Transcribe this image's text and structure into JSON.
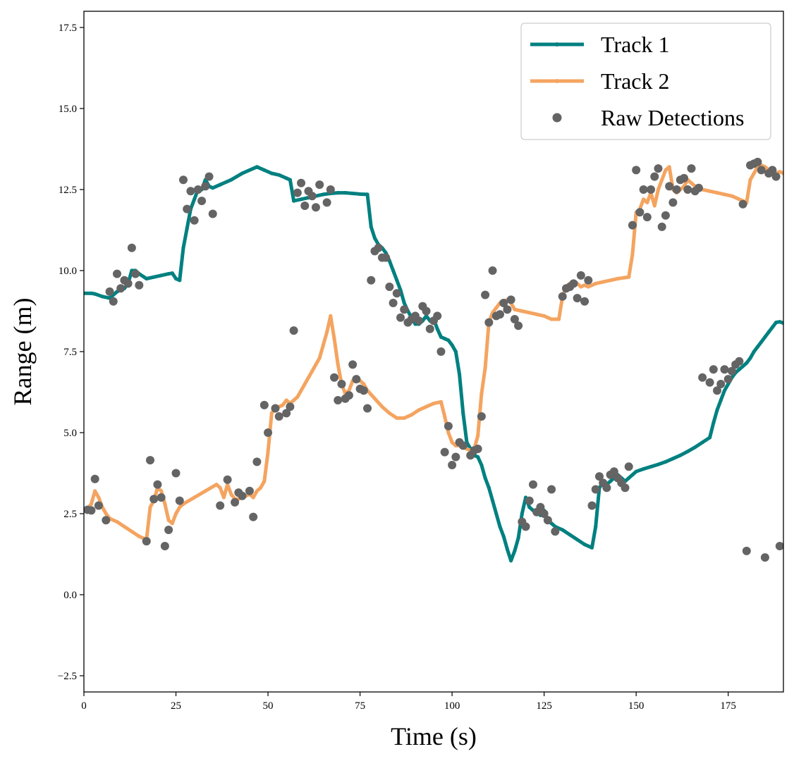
{
  "chart_data": {
    "type": "line",
    "title": "",
    "xlabel": "Time (s)",
    "ylabel": "Range (m)",
    "xlim": [
      0,
      190
    ],
    "ylim": [
      -3.0,
      18.0
    ],
    "xticks": [
      0,
      25,
      50,
      75,
      100,
      125,
      150,
      175
    ],
    "xtick_labels": [
      "0",
      "25",
      "50",
      "75",
      "100",
      "125",
      "150",
      "175"
    ],
    "yticks": [
      -2.5,
      0.0,
      2.5,
      5.0,
      7.5,
      10.0,
      12.5,
      15.0,
      17.5
    ],
    "ytick_labels": [
      "−2.5",
      "0.0",
      "2.5",
      "5.0",
      "7.5",
      "10.0",
      "12.5",
      "15.0",
      "17.5"
    ],
    "grid": false,
    "legend_position": "top-right",
    "series": [
      {
        "name": "Track 1",
        "kind": "line",
        "color": "#008080",
        "x": [
          0,
          2,
          3,
          5,
          7,
          9,
          11,
          12,
          13,
          14,
          15,
          17,
          19,
          21,
          23,
          24,
          25,
          26,
          27,
          28,
          29,
          30,
          31,
          32,
          33,
          34,
          35,
          37,
          40,
          43,
          47,
          49,
          51,
          53,
          55,
          56,
          57,
          59,
          61,
          63,
          65,
          67,
          69,
          71,
          73,
          75,
          77,
          78,
          79,
          80,
          81,
          82,
          83,
          84,
          85,
          86,
          87,
          88,
          89,
          90,
          91,
          92,
          93,
          94,
          95,
          96,
          97,
          98,
          99,
          100,
          101,
          102,
          103,
          104,
          105,
          106,
          107,
          108,
          109,
          110,
          111,
          112,
          113,
          114,
          115,
          116,
          117,
          118,
          119,
          120,
          121,
          122,
          123,
          124,
          125,
          126,
          127,
          128,
          130,
          132,
          134,
          136,
          138,
          139,
          140,
          141,
          142,
          143,
          144,
          145,
          146,
          147,
          148,
          149,
          150,
          152,
          154,
          156,
          158,
          160,
          162,
          164,
          166,
          168,
          170,
          171,
          172,
          173,
          174,
          175,
          176,
          177,
          178,
          179,
          180,
          181,
          182,
          183,
          184,
          185,
          186,
          187,
          188,
          189,
          190
        ],
        "y": [
          9.3,
          9.3,
          9.28,
          9.2,
          9.15,
          9.35,
          9.45,
          9.6,
          10.0,
          10.0,
          9.9,
          9.75,
          9.8,
          9.85,
          9.9,
          9.92,
          9.75,
          9.7,
          10.7,
          11.3,
          11.9,
          12.2,
          12.5,
          12.5,
          12.8,
          12.6,
          12.55,
          12.65,
          12.8,
          13.0,
          13.2,
          13.1,
          13.0,
          12.95,
          12.85,
          12.8,
          12.15,
          12.2,
          12.25,
          12.3,
          12.35,
          12.38,
          12.4,
          12.4,
          12.38,
          12.36,
          12.35,
          11.35,
          11.0,
          10.8,
          10.7,
          10.55,
          10.3,
          10.0,
          9.7,
          9.4,
          9.0,
          8.75,
          8.55,
          8.35,
          8.35,
          8.45,
          8.6,
          8.45,
          8.5,
          8.2,
          7.95,
          7.9,
          7.85,
          7.7,
          7.5,
          6.8,
          5.6,
          4.7,
          4.5,
          4.3,
          4.25,
          4.0,
          3.6,
          3.3,
          2.9,
          2.5,
          2.1,
          1.8,
          1.4,
          1.05,
          1.35,
          1.75,
          2.5,
          3.0,
          2.7,
          2.6,
          2.55,
          2.45,
          2.6,
          2.3,
          2.2,
          2.1,
          2.0,
          1.85,
          1.7,
          1.55,
          1.45,
          2.1,
          3.3,
          3.45,
          3.4,
          3.5,
          3.6,
          3.7,
          3.6,
          3.5,
          3.6,
          3.7,
          3.8,
          3.88,
          3.95,
          4.02,
          4.1,
          4.2,
          4.3,
          4.42,
          4.55,
          4.7,
          4.85,
          5.3,
          5.7,
          6.0,
          6.3,
          6.5,
          6.7,
          6.85,
          6.95,
          7.05,
          7.15,
          7.3,
          7.5,
          7.65,
          7.8,
          7.95,
          8.1,
          8.25,
          8.4,
          8.42,
          8.38
        ]
      },
      {
        "name": "Track 2",
        "kind": "line",
        "color": "#F4A460",
        "x": [
          0,
          1,
          2,
          3,
          4,
          5,
          6,
          7,
          9,
          11,
          13,
          15,
          17,
          18,
          19,
          20,
          21,
          22,
          23,
          24,
          25,
          26,
          27,
          30,
          33,
          36,
          37,
          38,
          39,
          40,
          41,
          42,
          43,
          44,
          45,
          46,
          47,
          48,
          49,
          50,
          51,
          52,
          53,
          54,
          55,
          56,
          57,
          58,
          59,
          60,
          61,
          62,
          63,
          64,
          65,
          66,
          67,
          68,
          69,
          70,
          71,
          72,
          73,
          74,
          75,
          76,
          77,
          79,
          81,
          83,
          85,
          87,
          89,
          91,
          93,
          95,
          97,
          98,
          99,
          100,
          101,
          102,
          103,
          104,
          105,
          106,
          107,
          108,
          109,
          110,
          111,
          112,
          113,
          114,
          115,
          116,
          117,
          119,
          121,
          123,
          125,
          127,
          129,
          130,
          131,
          132,
          133,
          134,
          135,
          136,
          137,
          139,
          141,
          143,
          145,
          148,
          149,
          150,
          151,
          152,
          153,
          154,
          155,
          156,
          157,
          158,
          159,
          160,
          161,
          162,
          163,
          164,
          165,
          166,
          167,
          168,
          170,
          172,
          174,
          176,
          178,
          180,
          181,
          182,
          183,
          184,
          185,
          186,
          187,
          188,
          189,
          190
        ],
        "y": [
          2.6,
          2.65,
          2.8,
          3.2,
          3.0,
          2.7,
          2.5,
          2.35,
          2.25,
          2.1,
          1.95,
          1.8,
          1.7,
          2.7,
          2.9,
          3.3,
          3.2,
          2.8,
          2.3,
          2.2,
          2.5,
          2.7,
          2.8,
          3.0,
          3.2,
          3.4,
          3.3,
          3.0,
          3.4,
          3.1,
          2.95,
          2.95,
          3.0,
          3.05,
          3.1,
          3.0,
          3.2,
          3.3,
          3.5,
          4.4,
          5.6,
          5.75,
          5.8,
          5.85,
          6.0,
          5.9,
          6.0,
          6.1,
          6.3,
          6.5,
          6.7,
          6.9,
          7.1,
          7.3,
          7.7,
          8.1,
          8.6,
          7.9,
          7.1,
          6.5,
          6.2,
          6.3,
          6.6,
          6.7,
          6.6,
          6.5,
          6.3,
          6.05,
          5.8,
          5.6,
          5.45,
          5.45,
          5.55,
          5.7,
          5.8,
          5.9,
          5.95,
          5.5,
          5.0,
          4.7,
          4.6,
          4.6,
          4.55,
          4.5,
          4.45,
          4.5,
          4.9,
          6.2,
          7.0,
          8.4,
          8.7,
          8.85,
          9.0,
          9.05,
          9.1,
          9.0,
          8.8,
          8.75,
          8.7,
          8.65,
          8.6,
          8.5,
          8.5,
          9.2,
          9.5,
          9.6,
          9.55,
          9.6,
          9.5,
          9.55,
          9.5,
          9.6,
          9.65,
          9.7,
          9.75,
          9.8,
          10.5,
          11.8,
          11.9,
          12.2,
          12.1,
          12.4,
          12.0,
          12.5,
          12.8,
          13.1,
          13.2,
          12.5,
          12.4,
          12.5,
          12.6,
          12.8,
          12.7,
          12.6,
          12.55,
          12.5,
          12.45,
          12.4,
          12.35,
          12.3,
          12.2,
          12.1,
          12.8,
          13.0,
          13.2,
          13.25,
          13.2,
          13.1,
          13.15,
          13.0,
          13.05,
          13.0
        ]
      },
      {
        "name": "Raw Detections",
        "kind": "scatter",
        "color": "#646464",
        "x": [
          1,
          2,
          3,
          4,
          6,
          7,
          8,
          9,
          10,
          11,
          12,
          13,
          14,
          15,
          17,
          18,
          19,
          20,
          21,
          22,
          23,
          25,
          26,
          27,
          28,
          29,
          30,
          31,
          32,
          33,
          34,
          35,
          37,
          39,
          41,
          42,
          43,
          45,
          46,
          47,
          49,
          50,
          52,
          53,
          55,
          56,
          57,
          58,
          59,
          60,
          61,
          62,
          63,
          64,
          66,
          67,
          68,
          69,
          70,
          71,
          72,
          73,
          74,
          75,
          76,
          77,
          78,
          79,
          80,
          81,
          82,
          83,
          84,
          85,
          86,
          87,
          88,
          89,
          90,
          91,
          92,
          93,
          94,
          95,
          96,
          97,
          98,
          99,
          100,
          101,
          102,
          103,
          105,
          106,
          107,
          108,
          109,
          110,
          111,
          112,
          113,
          114,
          115,
          116,
          117,
          118,
          119,
          120,
          121,
          122,
          123,
          124,
          125,
          126,
          127,
          128,
          130,
          131,
          132,
          133,
          134,
          135,
          136,
          137,
          138,
          139,
          140,
          141,
          142,
          143,
          144,
          145,
          146,
          147,
          148,
          149,
          150,
          151,
          152,
          153,
          154,
          155,
          156,
          157,
          158,
          159,
          160,
          161,
          162,
          163,
          164,
          165,
          166,
          167,
          168,
          170,
          171,
          172,
          173,
          174,
          175,
          176,
          177,
          178,
          179,
          180,
          181,
          182,
          183,
          184,
          185,
          186,
          187,
          188,
          189
        ],
        "y": [
          2.62,
          2.6,
          3.57,
          2.75,
          2.3,
          9.35,
          9.05,
          9.9,
          9.45,
          9.7,
          9.6,
          10.7,
          9.9,
          9.55,
          1.65,
          4.15,
          2.95,
          3.4,
          3.0,
          1.5,
          2.0,
          3.75,
          2.9,
          12.8,
          11.9,
          12.45,
          11.55,
          12.5,
          12.15,
          12.6,
          12.9,
          11.75,
          2.75,
          3.55,
          2.85,
          3.15,
          3.05,
          3.2,
          2.4,
          4.1,
          5.85,
          5.0,
          5.75,
          5.5,
          5.6,
          5.8,
          8.15,
          12.4,
          12.7,
          12.0,
          12.45,
          12.3,
          11.95,
          12.65,
          12.1,
          12.5,
          6.7,
          6.0,
          6.5,
          6.05,
          6.15,
          7.1,
          6.65,
          6.35,
          6.3,
          5.75,
          9.7,
          10.6,
          10.7,
          10.4,
          10.4,
          9.5,
          9.0,
          9.3,
          8.55,
          8.8,
          8.4,
          8.5,
          8.6,
          8.45,
          8.9,
          8.75,
          8.2,
          8.45,
          8.6,
          7.5,
          4.4,
          5.2,
          4.0,
          4.25,
          4.7,
          4.6,
          4.3,
          4.45,
          4.5,
          5.5,
          9.25,
          8.4,
          10.0,
          8.6,
          8.65,
          9.0,
          8.8,
          9.1,
          8.5,
          8.3,
          2.25,
          2.1,
          2.9,
          3.4,
          2.55,
          2.7,
          2.5,
          2.3,
          3.25,
          1.95,
          9.2,
          9.45,
          9.5,
          9.6,
          9.15,
          9.85,
          9.05,
          9.7,
          2.75,
          3.25,
          3.65,
          3.45,
          3.3,
          3.7,
          3.8,
          3.6,
          3.45,
          3.3,
          3.95,
          11.4,
          13.1,
          11.8,
          12.5,
          11.65,
          12.5,
          12.9,
          13.15,
          11.35,
          11.7,
          12.6,
          12.1,
          12.5,
          12.8,
          12.85,
          12.5,
          13.15,
          12.45,
          12.55,
          6.7,
          6.55,
          6.95,
          6.3,
          6.5,
          6.95,
          6.65,
          6.9,
          7.1,
          7.2,
          12.05,
          1.35,
          13.25,
          13.3,
          13.35,
          13.1,
          1.15,
          13.0,
          13.1,
          12.9,
          1.5
        ]
      }
    ]
  }
}
